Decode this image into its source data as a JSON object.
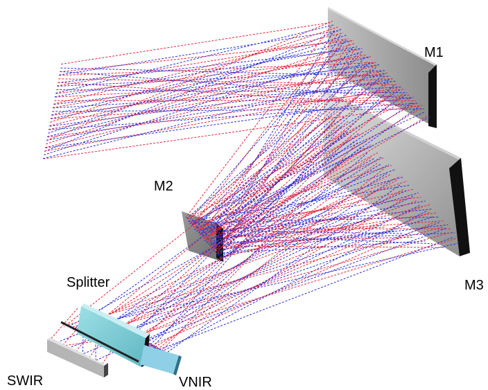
{
  "labels": {
    "m1": "M1",
    "m2": "M2",
    "m3": "M3",
    "splitter": "Splitter",
    "swir": "SWIR",
    "vnir": "VNIR"
  },
  "colors": {
    "ray_red": "#e8223a",
    "ray_blue": "#2a2fd8",
    "mirror_face": "#b4b4b4",
    "mirror_edge": "#111111",
    "splitter_face": "#7fcfd6",
    "vnir_face": "#8fd0e6"
  }
}
